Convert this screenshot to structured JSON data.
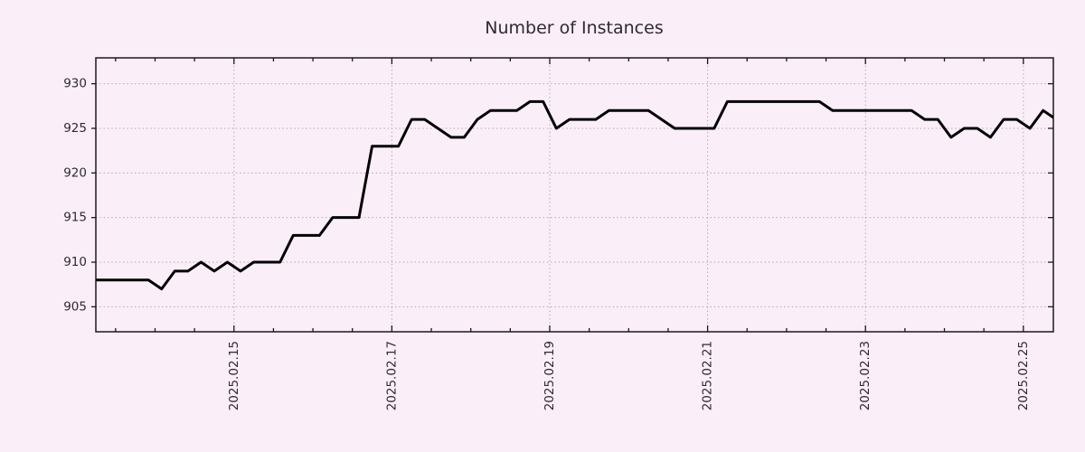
{
  "colors": {
    "background": "#faeef8",
    "line": "#000000",
    "grid": "#b5aab2",
    "border": "#1a1a1a",
    "text": "#2e2a31"
  },
  "chart_data": {
    "type": "line",
    "title": "Number of Instances",
    "x_axis": {
      "tick_labels": [
        "2025.02.15",
        "2025.02.17",
        "2025.02.19",
        "2025.02.21",
        "2025.02.23",
        "2025.02.25"
      ],
      "first_tick_day_offset": 1.75,
      "label_interval_days": 2,
      "minor_tick_interval_days": 0.5,
      "visible_span_days": 12.13,
      "grid_on_labeled_ticks": true
    },
    "y_axis": {
      "ticks": [
        905,
        910,
        915,
        920,
        925,
        930
      ],
      "min": 902.2,
      "max": 932.9,
      "grid": true
    },
    "legend": null,
    "series": [
      {
        "name": "Number of Instances",
        "color": "#000000",
        "sample_interval_days": 0.166667,
        "values": [
          908,
          908,
          908,
          908,
          908,
          907,
          909,
          909,
          910,
          909,
          910,
          909,
          910,
          910,
          910,
          913,
          913,
          913,
          915,
          915,
          915,
          923,
          923,
          923,
          926,
          926,
          925,
          924,
          924,
          926,
          927,
          927,
          927,
          928,
          928,
          925,
          926,
          926,
          926,
          927,
          927,
          927,
          927,
          926,
          925,
          925,
          925,
          925,
          928,
          928,
          928,
          928,
          928,
          928,
          928,
          928,
          927,
          927,
          927,
          927,
          927,
          927,
          927,
          926,
          926,
          924,
          925,
          925,
          924,
          926,
          926,
          925,
          927,
          926
        ]
      }
    ]
  }
}
